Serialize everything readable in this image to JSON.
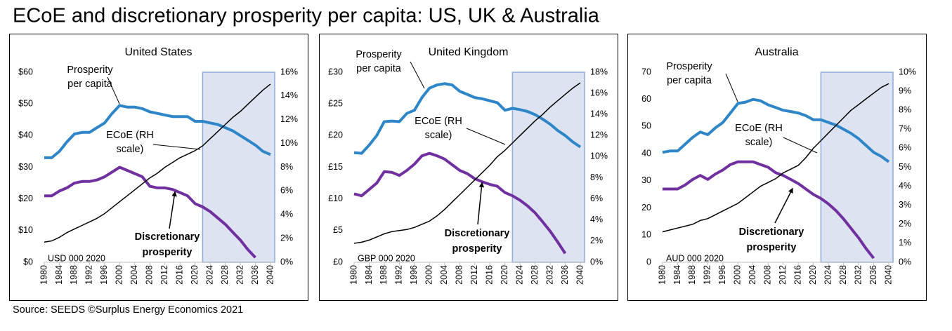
{
  "title": "ECoE and discretionary prosperity per capita: US, UK & Australia",
  "source": "Source: SEEDS  ©Surplus Energy Economics 2021",
  "chart_data": [
    {
      "type": "line",
      "title": "United States",
      "x": [
        1980,
        1982,
        1984,
        1986,
        1988,
        1990,
        1992,
        1994,
        1996,
        1998,
        2000,
        2002,
        2004,
        2006,
        2008,
        2010,
        2012,
        2014,
        2016,
        2018,
        2020,
        2022,
        2024,
        2026,
        2028,
        2030,
        2032,
        2034,
        2036,
        2038,
        2040
      ],
      "xlim": [
        1980,
        2040
      ],
      "xticks": [
        1980,
        1984,
        1988,
        1992,
        1996,
        2000,
        2004,
        2008,
        2012,
        2016,
        2020,
        2024,
        2028,
        2032,
        2036,
        2040
      ],
      "ylim": [
        0,
        60
      ],
      "yticks": [
        {
          "value": 0,
          "label": "$0"
        },
        {
          "value": 10,
          "label": "$10"
        },
        {
          "value": 20,
          "label": "$20"
        },
        {
          "value": 30,
          "label": "$30"
        },
        {
          "value": 40,
          "label": "$40"
        },
        {
          "value": 50,
          "label": "$50"
        },
        {
          "value": 60,
          "label": "$60"
        }
      ],
      "y2lim": [
        0,
        16
      ],
      "y2ticks": [
        {
          "value": 0,
          "label": "0%"
        },
        {
          "value": 2,
          "label": "2%"
        },
        {
          "value": 4,
          "label": "4%"
        },
        {
          "value": 6,
          "label": "6%"
        },
        {
          "value": 8,
          "label": "8%"
        },
        {
          "value": 10,
          "label": "10%"
        },
        {
          "value": 12,
          "label": "12%"
        },
        {
          "value": 14,
          "label": "14%"
        },
        {
          "value": 16,
          "label": "16%"
        }
      ],
      "forecast_shade": [
        2022,
        2040
      ],
      "labels": {
        "prosperity": [
          "Prosperity",
          "per capita"
        ],
        "ecoe": [
          "ECoE (RH",
          "scale)"
        ],
        "discretionary": [
          "Discretionary",
          "prosperity"
        ],
        "unit": "USD 000 2020"
      },
      "series": [
        {
          "name": "Prosperity per capita",
          "color": "#2e86c8",
          "values": [
            33,
            33,
            35,
            38,
            40.5,
            41,
            41,
            42.5,
            44,
            47,
            49.5,
            49,
            49,
            48.5,
            47.5,
            47,
            46.5,
            46,
            46,
            46,
            44.5,
            44.5,
            44,
            43.5,
            42.5,
            41.5,
            40,
            38.5,
            37,
            35,
            34
          ]
        },
        {
          "name": "Discretionary prosperity",
          "color": "#7030a0",
          "values": [
            21,
            21,
            22.5,
            23.5,
            25,
            25.5,
            25.5,
            26,
            27,
            28.5,
            30,
            29,
            28,
            27,
            24,
            23.5,
            23.5,
            23,
            22,
            21,
            18.5,
            17.5,
            16,
            14,
            12,
            9.5,
            7,
            4,
            1.5,
            null,
            null
          ]
        },
        {
          "name": "ECoE (RH scale)",
          "color": "#000000",
          "axis": "y2",
          "values": [
            1.7,
            1.8,
            2.1,
            2.5,
            2.8,
            3.1,
            3.4,
            3.7,
            4.1,
            4.6,
            5.1,
            5.6,
            6.1,
            6.6,
            7.1,
            7.5,
            8.0,
            8.4,
            8.8,
            9.1,
            9.4,
            9.8,
            10.4,
            11.0,
            11.6,
            12.2,
            12.7,
            13.3,
            13.9,
            14.5,
            15.0
          ]
        }
      ]
    },
    {
      "type": "line",
      "title": "United Kingdom",
      "x": [
        1980,
        1982,
        1984,
        1986,
        1988,
        1990,
        1992,
        1994,
        1996,
        1998,
        2000,
        2002,
        2004,
        2006,
        2008,
        2010,
        2012,
        2014,
        2016,
        2018,
        2020,
        2022,
        2024,
        2026,
        2028,
        2030,
        2032,
        2034,
        2036,
        2038,
        2040
      ],
      "xlim": [
        1980,
        2040
      ],
      "xticks": [
        1980,
        1984,
        1988,
        1992,
        1996,
        2000,
        2004,
        2008,
        2012,
        2016,
        2020,
        2024,
        2028,
        2032,
        2036,
        2040
      ],
      "ylim": [
        0,
        30
      ],
      "yticks": [
        {
          "value": 0,
          "label": "£0"
        },
        {
          "value": 5,
          "label": "£5"
        },
        {
          "value": 10,
          "label": "£10"
        },
        {
          "value": 15,
          "label": "£15"
        },
        {
          "value": 20,
          "label": "£20"
        },
        {
          "value": 25,
          "label": "£25"
        },
        {
          "value": 30,
          "label": "£30"
        }
      ],
      "y2lim": [
        0,
        18
      ],
      "y2ticks": [
        {
          "value": 0,
          "label": "0%"
        },
        {
          "value": 2,
          "label": "2%"
        },
        {
          "value": 4,
          "label": "4%"
        },
        {
          "value": 6,
          "label": "6%"
        },
        {
          "value": 8,
          "label": "8%"
        },
        {
          "value": 10,
          "label": "10%"
        },
        {
          "value": 12,
          "label": "12%"
        },
        {
          "value": 14,
          "label": "14%"
        },
        {
          "value": 16,
          "label": "16%"
        },
        {
          "value": 18,
          "label": "18%"
        }
      ],
      "forecast_shade": [
        2022,
        2040
      ],
      "labels": {
        "prosperity": [
          "Prosperity",
          "per capita"
        ],
        "ecoe": [
          "ECoE (RH",
          "scale)"
        ],
        "discretionary": [
          "Discretionary",
          "prosperity"
        ],
        "unit": "GBP 000 2020"
      },
      "series": [
        {
          "name": "Prosperity per capita",
          "color": "#2e86c8",
          "values": [
            17.3,
            17.2,
            18.5,
            20,
            22.2,
            22.3,
            22.2,
            23.5,
            24,
            26,
            27.5,
            28,
            28.2,
            28,
            27,
            26.5,
            26,
            25.8,
            25.5,
            25.2,
            24,
            24.3,
            24.1,
            23.8,
            23.3,
            22.6,
            21.8,
            20.8,
            20,
            19,
            18.2
          ]
        },
        {
          "name": "Discretionary prosperity",
          "color": "#7030a0",
          "values": [
            10.8,
            10.5,
            11.5,
            12.5,
            14.3,
            14.2,
            13.7,
            14.5,
            15.5,
            16.8,
            17.2,
            16.8,
            16.3,
            15.4,
            14.5,
            14,
            13.2,
            12.7,
            12.3,
            12,
            11,
            10.5,
            9.8,
            8.9,
            7.8,
            6.4,
            4.9,
            3.2,
            1.4,
            null,
            null
          ]
        },
        {
          "name": "ECoE (RH scale)",
          "color": "#000000",
          "axis": "y2",
          "values": [
            1.8,
            1.9,
            2.1,
            2.4,
            2.7,
            2.9,
            3.0,
            3.1,
            3.3,
            3.6,
            3.9,
            4.4,
            5.0,
            5.7,
            6.4,
            7.1,
            7.8,
            8.5,
            9.2,
            10.0,
            10.6,
            11.3,
            12.0,
            12.7,
            13.4,
            14.0,
            14.7,
            15.3,
            15.9,
            16.5,
            17.0
          ]
        }
      ]
    },
    {
      "type": "line",
      "title": "Australia",
      "x": [
        1980,
        1982,
        1984,
        1986,
        1988,
        1990,
        1992,
        1994,
        1996,
        1998,
        2000,
        2002,
        2004,
        2006,
        2008,
        2010,
        2012,
        2014,
        2016,
        2018,
        2020,
        2022,
        2024,
        2026,
        2028,
        2030,
        2032,
        2034,
        2036,
        2038,
        2040
      ],
      "xlim": [
        1980,
        2040
      ],
      "xticks": [
        1980,
        1984,
        1988,
        1992,
        1996,
        2000,
        2004,
        2008,
        2012,
        2016,
        2020,
        2024,
        2028,
        2032,
        2036,
        2040
      ],
      "ylim": [
        0,
        70
      ],
      "yticks": [
        0,
        10,
        20,
        30,
        40,
        50,
        60,
        70
      ],
      "y2lim": [
        0,
        10
      ],
      "y2ticks": [
        {
          "value": 0,
          "label": "0%"
        },
        {
          "value": 1,
          "label": "1%"
        },
        {
          "value": 2,
          "label": "2%"
        },
        {
          "value": 3,
          "label": "3%"
        },
        {
          "value": 4,
          "label": "4%"
        },
        {
          "value": 5,
          "label": "5%"
        },
        {
          "value": 6,
          "label": "6%"
        },
        {
          "value": 7,
          "label": "7%"
        },
        {
          "value": 8,
          "label": "8%"
        },
        {
          "value": 9,
          "label": "9%"
        },
        {
          "value": 10,
          "label": "10%"
        }
      ],
      "forecast_shade": [
        2022,
        2040
      ],
      "labels": {
        "prosperity": [
          "Prosperity",
          "per capita"
        ],
        "ecoe": [
          "ECoE (RH",
          "scale)"
        ],
        "discretionary": [
          "Discretionary",
          "prosperity"
        ],
        "unit": "AUD 000 2020"
      },
      "series": [
        {
          "name": "Prosperity per capita",
          "color": "#2e86c8",
          "values": [
            40.5,
            41,
            41,
            43.5,
            46,
            48,
            47,
            49.5,
            51.5,
            55,
            58.5,
            59,
            60,
            59.5,
            58,
            57,
            56,
            55.5,
            55,
            54,
            52.5,
            52.5,
            51.5,
            50.5,
            49,
            47.5,
            45.5,
            43,
            40.5,
            39,
            37
          ]
        },
        {
          "name": "Discretionary prosperity",
          "color": "#7030a0",
          "values": [
            27,
            27,
            27,
            28.5,
            30.5,
            32,
            30.5,
            32.5,
            34,
            36,
            37,
            37,
            37,
            36,
            35,
            33,
            32,
            30.5,
            29,
            27,
            25,
            23.5,
            21.5,
            19,
            16,
            12.5,
            9,
            5,
            1.5,
            null,
            null
          ]
        },
        {
          "name": "ECoE (RH scale)",
          "color": "#000000",
          "axis": "y2",
          "values": [
            1.6,
            1.7,
            1.8,
            1.9,
            2.0,
            2.2,
            2.3,
            2.5,
            2.7,
            2.9,
            3.1,
            3.4,
            3.7,
            4.0,
            4.2,
            4.4,
            4.7,
            4.9,
            5.1,
            5.5,
            6.0,
            6.4,
            6.8,
            7.2,
            7.6,
            8.0,
            8.3,
            8.6,
            8.9,
            9.2,
            9.4
          ]
        }
      ]
    }
  ]
}
